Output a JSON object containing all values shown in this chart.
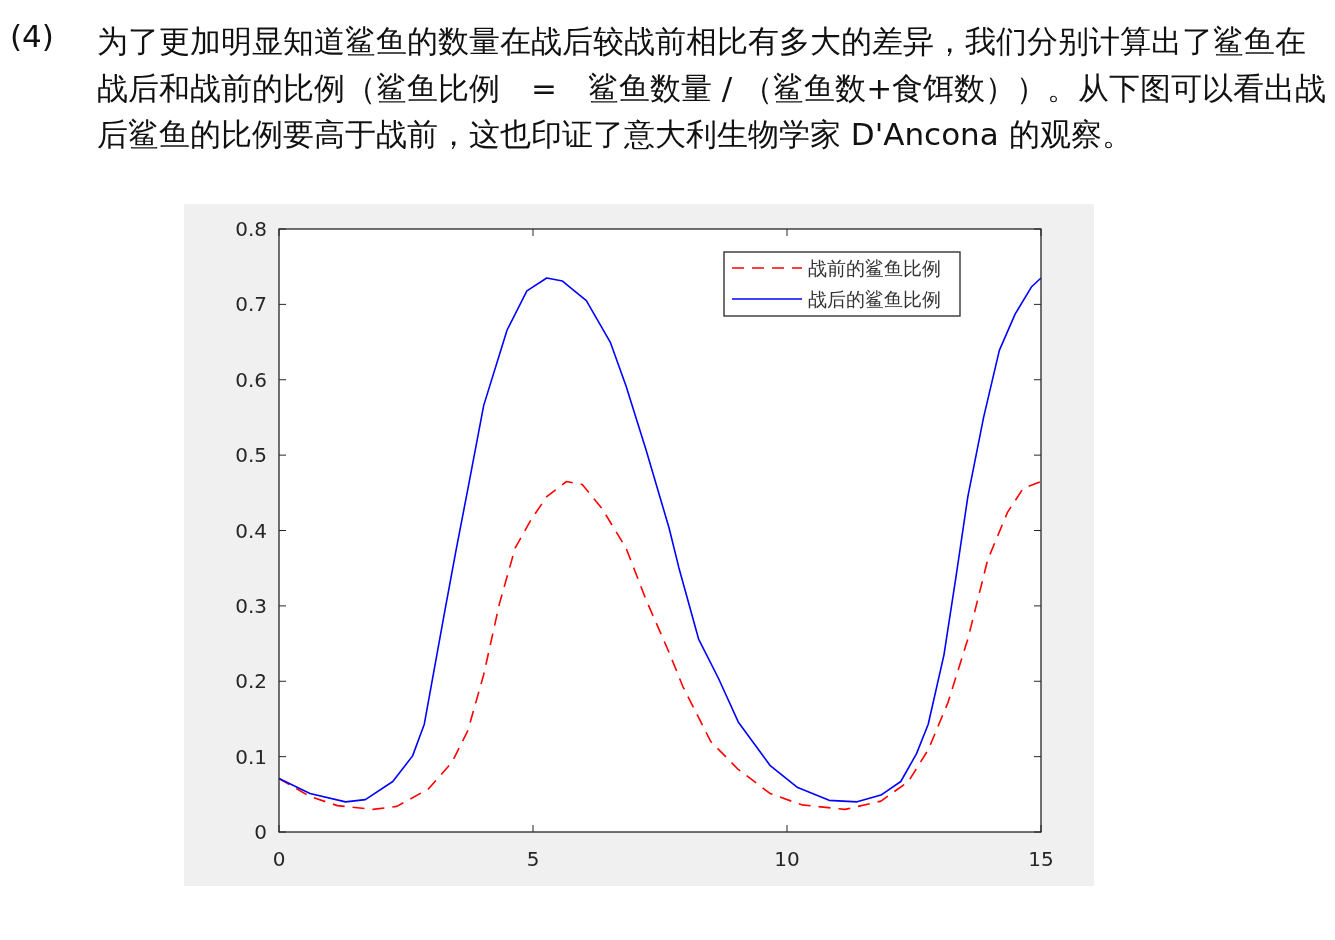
{
  "chart_data": {
    "type": "line",
    "title": "(4)",
    "subtitle": "为了更加明显知道鲨鱼的数量在战后较战前相比有多大的差异，我们分别计算出了鲨鱼在战后和战前的比例（鲨鱼比例　=　鲨鱼数量 / （鲨鱼数+食饵数））。从下图可以看出战后鲨鱼的比例要高于战前，这也印证了意大利生物学家 D'Ancona 的观察。",
    "xlim": [
      0,
      15
    ],
    "xticks": [
      0,
      5,
      10,
      15
    ],
    "ylim": [
      0,
      0.8
    ],
    "yticks": [
      0,
      0.1,
      0.2,
      0.3,
      0.4,
      0.5,
      0.6,
      0.7,
      0.8
    ],
    "legend": "top right",
    "series": [
      {
        "name": "战前的鲨鱼比例",
        "color": "#ff0000",
        "line_style": "dashed",
        "x": [
          0,
          0.61,
          1.15,
          1.85,
          2.32,
          2.94,
          3.41,
          3.72,
          4.03,
          4.34,
          4.65,
          4.96,
          5.27,
          5.66,
          5.97,
          6.36,
          6.83,
          7.22,
          7.68,
          7.95,
          8.5,
          9.04,
          9.67,
          10.29,
          11.14,
          11.85,
          12.39,
          12.78,
          13.17,
          13.56,
          13.95,
          14.34,
          14.65,
          15
        ],
        "values": [
          0.071,
          0.047,
          0.035,
          0.03,
          0.034,
          0.057,
          0.093,
          0.135,
          0.209,
          0.303,
          0.377,
          0.414,
          0.445,
          0.465,
          0.461,
          0.429,
          0.377,
          0.309,
          0.238,
          0.193,
          0.12,
          0.083,
          0.051,
          0.036,
          0.03,
          0.041,
          0.067,
          0.109,
          0.172,
          0.256,
          0.361,
          0.424,
          0.456,
          0.465
        ]
      },
      {
        "name": "战后的鲨鱼比例",
        "color": "#0000ff",
        "line_style": "solid",
        "x": [
          0,
          0.61,
          1.31,
          1.7,
          2.24,
          2.63,
          2.86,
          3.25,
          3.48,
          3.72,
          4.03,
          4.49,
          4.88,
          5.27,
          5.58,
          6.05,
          6.52,
          6.83,
          7.22,
          7.68,
          7.87,
          8.26,
          8.65,
          9.04,
          9.67,
          10.21,
          10.83,
          11.38,
          11.85,
          12.24,
          12.55,
          12.78,
          13.09,
          13.33,
          13.56,
          13.87,
          14.18,
          14.49,
          14.81,
          15
        ],
        "values": [
          0.071,
          0.051,
          0.04,
          0.043,
          0.067,
          0.101,
          0.143,
          0.288,
          0.372,
          0.456,
          0.566,
          0.666,
          0.718,
          0.735,
          0.731,
          0.705,
          0.65,
          0.592,
          0.508,
          0.403,
          0.351,
          0.256,
          0.204,
          0.146,
          0.088,
          0.059,
          0.042,
          0.04,
          0.049,
          0.067,
          0.104,
          0.143,
          0.235,
          0.34,
          0.445,
          0.55,
          0.639,
          0.687,
          0.723,
          0.735
        ]
      }
    ]
  }
}
